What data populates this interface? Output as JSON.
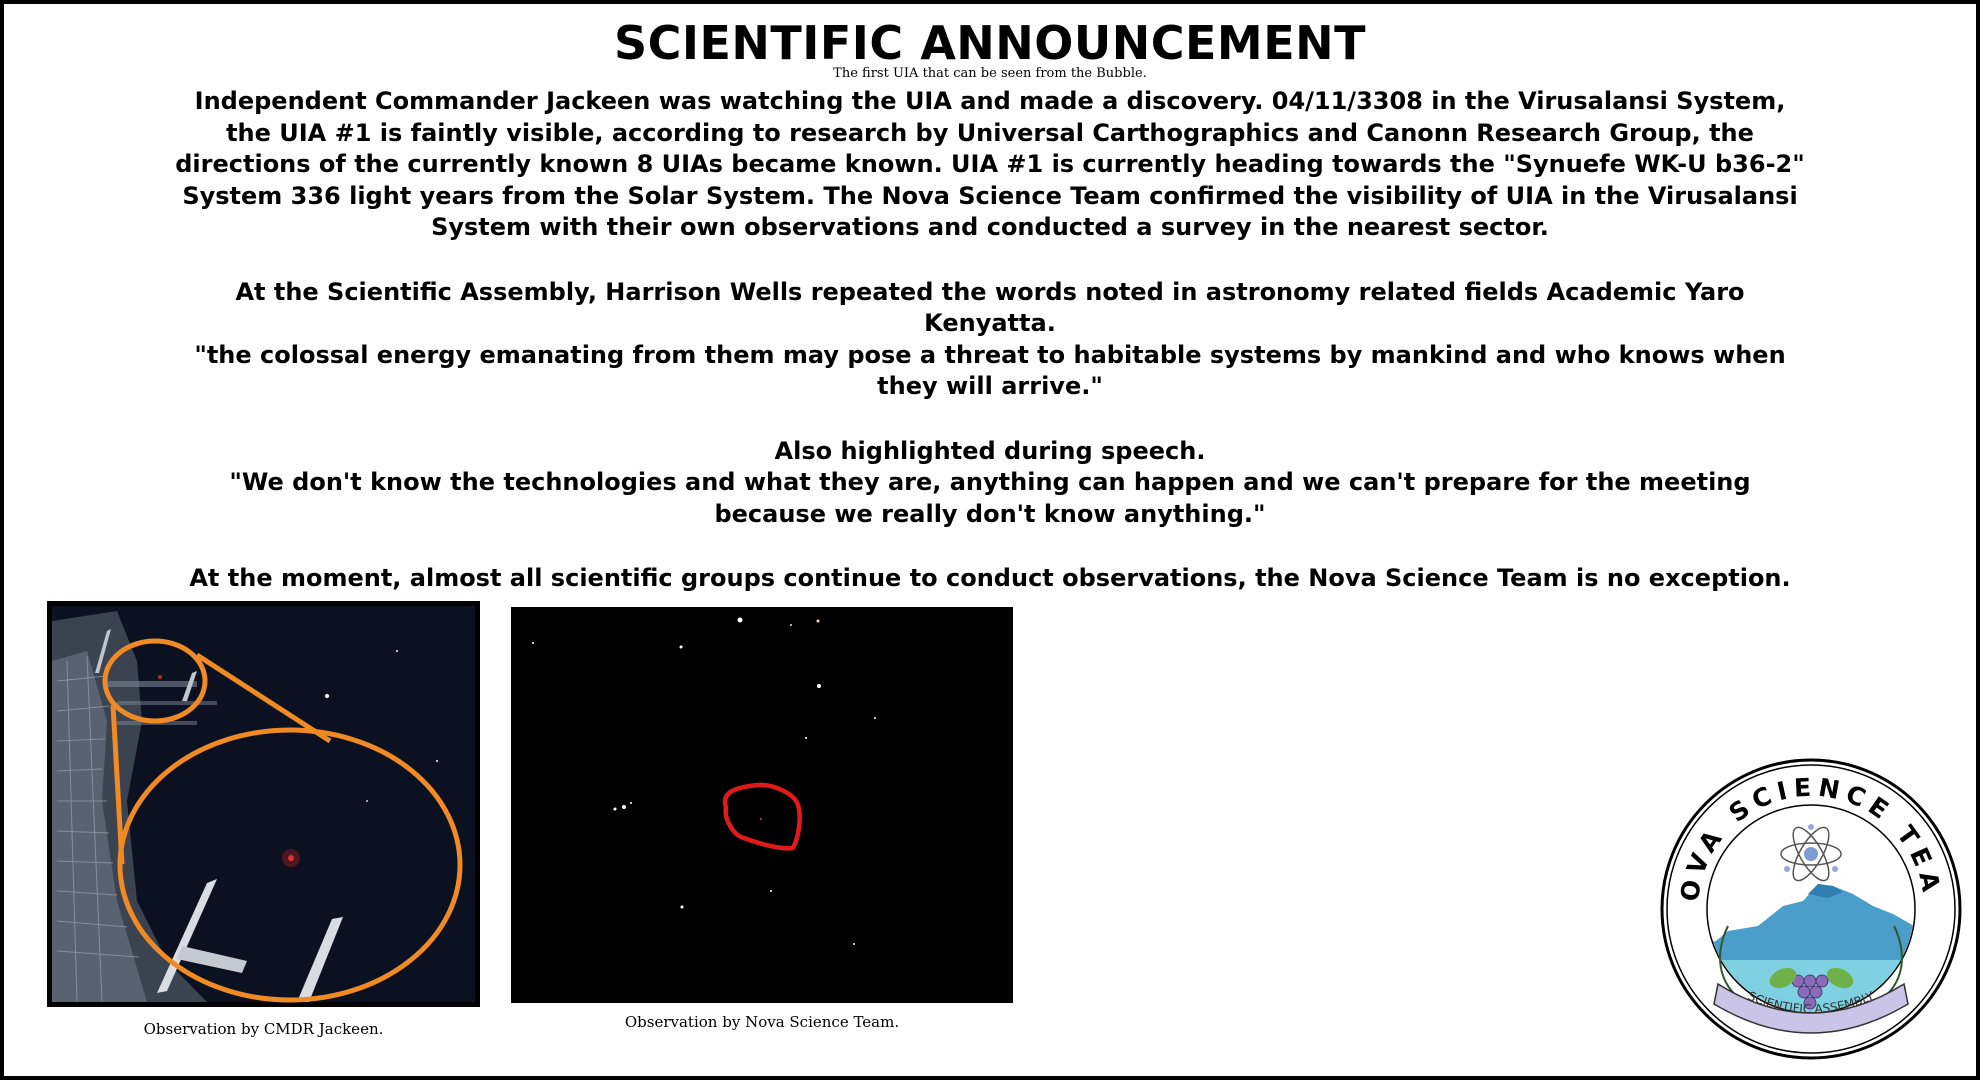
{
  "header": {
    "title": "SCIENTIFIC ANNOUNCEMENT",
    "subtitle": "The first UIA that can be seen from the Bubble."
  },
  "article": {
    "paragraph1": "Independent Commander Jackeen was watching the UIA and made a discovery. 04/11/3308 in the Virusalansi System, the UIA #1 is faintly visible, according to research by Universal Carthographics and Canonn Research Group, the directions of the currently known 8 UIAs became known. UIA #1 is currently heading towards the \"Synuefe WK-U b36-2\" System 336 light years from the Solar System. The Nova Science Team confirmed the visibility of UIA in the Virusalansi System with their own observations and conducted a survey in the nearest sector.",
    "paragraph2_intro": "At the Scientific Assembly, Harrison Wells repeated the words noted in astronomy related fields Academic Yaro Kenyatta.",
    "paragraph2_quote": "\"the colossal energy emanating from them may pose a threat to habitable systems by mankind and who knows when they will arrive.\"",
    "paragraph3_intro": "Also highlighted during speech.",
    "paragraph3_quote": "\"We don't know the technologies and what they are, anything can happen and we can't prepare for the meeting because we really don't know anything.\"",
    "paragraph4": "At the moment, almost all scientific groups continue to conduct observations, the Nova Science Team is no exception."
  },
  "figures": {
    "caption_left": "Observation by CMDR Jackeen.",
    "caption_right": "Observation by Nova Science Team."
  },
  "logo": {
    "top_text": "NOVA SCIENCE TEAM",
    "banner_text": "SCIENTIFIC ASSEMBLY"
  },
  "colors": {
    "annotation_orange": "#f08a24",
    "annotation_red": "#e01a1a",
    "logo_mountain": "#4a9ec9"
  }
}
